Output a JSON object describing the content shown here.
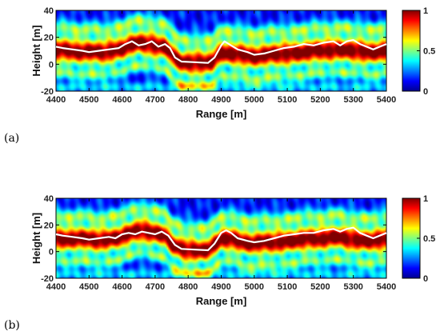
{
  "chart_data": [
    {
      "type": "heatmap",
      "panel_label": "(a)",
      "xlabel": "Range [m]",
      "ylabel": "Height [m]",
      "xlim": [
        4400,
        5400
      ],
      "ylim": [
        -20,
        40
      ],
      "xticks": [
        4400,
        4500,
        4600,
        4700,
        4800,
        4900,
        5000,
        5100,
        5200,
        5300,
        5400
      ],
      "yticks": [
        -20,
        0,
        20,
        40
      ],
      "colorbar": {
        "range": [
          0,
          1
        ],
        "ticks": [
          0,
          0.5,
          1
        ],
        "colormap": "jet"
      },
      "ridge_x": [
        4400,
        4450,
        4500,
        4550,
        4600,
        4620,
        4650,
        4700,
        4730,
        4750,
        4780,
        4800,
        4850,
        4870,
        4900,
        4950,
        5000,
        5050,
        5100,
        5150,
        5200,
        5250,
        5300,
        5350,
        5400
      ],
      "ridge_y": [
        10,
        10,
        9,
        9,
        12,
        14,
        16,
        14,
        13,
        7,
        1,
        1,
        1,
        2,
        9,
        7,
        6,
        7,
        8,
        9,
        10,
        11,
        10,
        9,
        10
      ],
      "overlay_line": [
        [
          4400,
          13
        ],
        [
          4420,
          12
        ],
        [
          4450,
          11
        ],
        [
          4480,
          10
        ],
        [
          4500,
          9
        ],
        [
          4530,
          10
        ],
        [
          4560,
          11
        ],
        [
          4590,
          12
        ],
        [
          4610,
          15
        ],
        [
          4630,
          17
        ],
        [
          4650,
          14
        ],
        [
          4670,
          15
        ],
        [
          4690,
          17
        ],
        [
          4710,
          13
        ],
        [
          4730,
          15
        ],
        [
          4745,
          12
        ],
        [
          4760,
          5
        ],
        [
          4780,
          2
        ],
        [
          4820,
          1.5
        ],
        [
          4860,
          1
        ],
        [
          4880,
          5
        ],
        [
          4900,
          14
        ],
        [
          4910,
          17
        ],
        [
          4930,
          14
        ],
        [
          4950,
          11
        ],
        [
          4980,
          9
        ],
        [
          5000,
          7
        ],
        [
          5030,
          8
        ],
        [
          5060,
          10
        ],
        [
          5090,
          12
        ],
        [
          5120,
          13
        ],
        [
          5150,
          15
        ],
        [
          5180,
          14
        ],
        [
          5210,
          16
        ],
        [
          5240,
          17
        ],
        [
          5260,
          14
        ],
        [
          5280,
          17
        ],
        [
          5300,
          18
        ],
        [
          5320,
          15
        ],
        [
          5340,
          13
        ],
        [
          5360,
          11
        ],
        [
          5380,
          13
        ],
        [
          5400,
          15
        ]
      ]
    },
    {
      "type": "heatmap",
      "panel_label": "(b)",
      "xlabel": "Range [m]",
      "ylabel": "Height [m]",
      "xlim": [
        4400,
        5400
      ],
      "ylim": [
        -20,
        40
      ],
      "xticks": [
        4400,
        4500,
        4600,
        4700,
        4800,
        4900,
        5000,
        5100,
        5200,
        5300,
        5400
      ],
      "yticks": [
        -20,
        0,
        20,
        40
      ],
      "colorbar": {
        "range": [
          0,
          1
        ],
        "ticks": [
          0,
          0.5,
          1
        ],
        "colormap": "jet"
      },
      "ridge_x": [
        4400,
        4450,
        4500,
        4550,
        4600,
        4620,
        4650,
        4700,
        4730,
        4750,
        4780,
        4800,
        4850,
        4870,
        4900,
        4950,
        5000,
        5050,
        5100,
        5150,
        5200,
        5250,
        5300,
        5350,
        5400
      ],
      "ridge_y": [
        9,
        10,
        9,
        9,
        11,
        13,
        16,
        14,
        12,
        6,
        2,
        1,
        1,
        3,
        10,
        8,
        6,
        7,
        8,
        9,
        10,
        11,
        9,
        8,
        9
      ],
      "overlay_line": [
        [
          4400,
          13
        ],
        [
          4420,
          12
        ],
        [
          4450,
          11
        ],
        [
          4480,
          10
        ],
        [
          4500,
          9
        ],
        [
          4530,
          10
        ],
        [
          4560,
          11
        ],
        [
          4580,
          10
        ],
        [
          4600,
          13
        ],
        [
          4620,
          14
        ],
        [
          4640,
          13
        ],
        [
          4660,
          15
        ],
        [
          4680,
          14
        ],
        [
          4700,
          13
        ],
        [
          4720,
          15
        ],
        [
          4740,
          12
        ],
        [
          4760,
          5
        ],
        [
          4780,
          2
        ],
        [
          4820,
          1.5
        ],
        [
          4860,
          1
        ],
        [
          4880,
          6
        ],
        [
          4900,
          14
        ],
        [
          4915,
          16
        ],
        [
          4930,
          14
        ],
        [
          4950,
          10
        ],
        [
          4980,
          8
        ],
        [
          5000,
          7
        ],
        [
          5030,
          8
        ],
        [
          5060,
          10
        ],
        [
          5090,
          12
        ],
        [
          5120,
          13
        ],
        [
          5150,
          14
        ],
        [
          5180,
          14
        ],
        [
          5210,
          16
        ],
        [
          5240,
          17
        ],
        [
          5260,
          15
        ],
        [
          5280,
          17
        ],
        [
          5300,
          18
        ],
        [
          5320,
          14
        ],
        [
          5340,
          12
        ],
        [
          5360,
          10
        ],
        [
          5380,
          12
        ],
        [
          5400,
          14
        ]
      ]
    }
  ]
}
